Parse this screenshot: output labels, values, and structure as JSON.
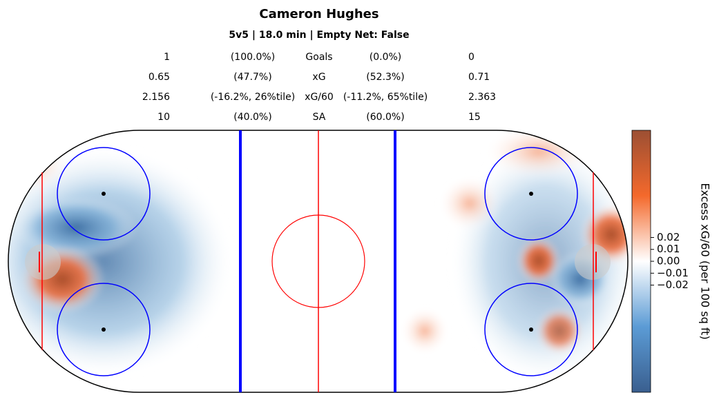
{
  "chart_data": {
    "type": "heatmap",
    "title": "Cameron Hughes",
    "subtitle": "5v5 | 18.0 min | Empty Net: False",
    "stats": [
      {
        "left": 1,
        "left_pct": "(100.0%)",
        "label": "Goals",
        "right_pct": "(0.0%)",
        "right": 0
      },
      {
        "left": 0.65,
        "left_pct": "(47.7%)",
        "label": "xG",
        "right_pct": "(52.3%)",
        "right": 0.71
      },
      {
        "left": 2.156,
        "left_pct": "(-16.2%, 26%tile)",
        "label": "xG/60",
        "right_pct": "(-11.2%, 65%tile)",
        "right": 2.363
      },
      {
        "left": 10,
        "left_pct": "(40.0%)",
        "label": "SA",
        "right_pct": "(60.0%)",
        "right": 15
      }
    ],
    "colorbar": {
      "label": "Excess xG/60 (per 100 sq ft)",
      "ylim": [
        -0.11,
        0.11
      ],
      "yticks": [
        0.02,
        0.01,
        {
          "value": 0,
          "label": "0.00"
        },
        {
          "value": -0.01,
          "label": "−0.01"
        },
        {
          "value": -0.02,
          "label": "−0.02"
        }
      ],
      "colors": [
        "#3a5f8f",
        "#5b9bd5",
        "#ffffff",
        "#f4692c",
        "#9c4f33"
      ]
    }
  }
}
